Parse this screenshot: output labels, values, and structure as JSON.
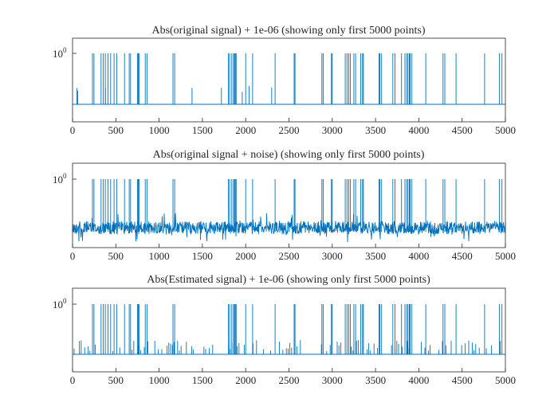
{
  "figure": {
    "background": "#ffffff"
  },
  "chart_data": [
    {
      "type": "line",
      "title": "Abs(original signal) + 1e-06  (showing only first 5000 points)",
      "xlim": [
        0,
        5000
      ],
      "xticks": [
        0,
        500,
        1000,
        1500,
        2000,
        2500,
        3000,
        3500,
        4000,
        4500,
        5000
      ],
      "ytick_base": "10",
      "ytick_exp": "0",
      "yscale": "log",
      "noise": "none",
      "series": [
        {
          "name": "signal",
          "color": "#0072bd"
        }
      ]
    },
    {
      "type": "line",
      "title": "Abs(original signal + noise)  (showing only first 5000 points)",
      "xlim": [
        0,
        5000
      ],
      "xticks": [
        0,
        500,
        1000,
        1500,
        2000,
        2500,
        3000,
        3500,
        4000,
        4500,
        5000
      ],
      "ytick_base": "10",
      "ytick_exp": "0",
      "yscale": "log",
      "noise": "dense",
      "series": [
        {
          "name": "signal + noise",
          "color": "#0072bd"
        }
      ]
    },
    {
      "type": "line",
      "title": "Abs(Estimated signal) + 1e-06  (showing only first 5000 points)",
      "xlim": [
        0,
        5000
      ],
      "xticks": [
        0,
        500,
        1000,
        1500,
        2000,
        2500,
        3000,
        3500,
        4000,
        4500,
        5000
      ],
      "ytick_base": "10",
      "ytick_exp": "0",
      "yscale": "log",
      "noise": "sparse",
      "series": [
        {
          "name": "estimate",
          "color": "#0072bd"
        }
      ]
    }
  ],
  "spike_positions": [
    230,
    248,
    330,
    355,
    378,
    410,
    440,
    480,
    510,
    600,
    655,
    670,
    750,
    760,
    770,
    840,
    860,
    1160,
    1180,
    1800,
    1815,
    1840,
    1860,
    1870,
    1880,
    1890,
    2000,
    2080,
    2340,
    2560,
    2570,
    2880,
    2895,
    2990,
    3000,
    3150,
    3170,
    3190,
    3210,
    3250,
    3270,
    3330,
    3350,
    3360,
    3540,
    3550,
    3570,
    3700,
    3725,
    3800,
    3840,
    3860,
    3875,
    3890,
    3900,
    3920,
    4080,
    4280,
    4300,
    4430,
    4760,
    4930,
    4960
  ],
  "medium_spikes": [
    50,
    60,
    380,
    1160,
    1380,
    1720,
    1960,
    2040,
    2300
  ]
}
